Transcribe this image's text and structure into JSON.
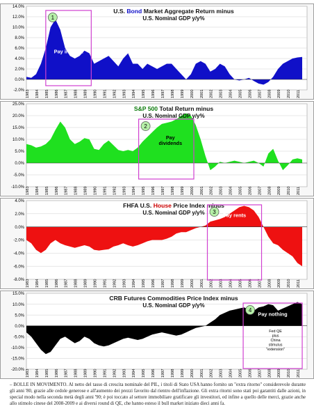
{
  "chart_data": [
    {
      "type": "area",
      "title_prefix": "U.S. ",
      "title_key": "Bond",
      "title_suffix": " Market Aggregate Return minus",
      "subtitle": "U.S. Nominal GDP y/y%",
      "fill_color": "#1010c8",
      "key_color": "#1010c8",
      "background": "#ffffff",
      "ylim": [
        -2,
        14
      ],
      "yticks": [
        "14.0%",
        "12.0%",
        "10.0%",
        "8.0%",
        "6.0%",
        "4.0%",
        "2.0%",
        "0.0%",
        "-2.0%"
      ],
      "ytick_values": [
        14,
        12,
        10,
        8,
        6,
        4,
        2,
        0,
        -2
      ],
      "xticks": [
        "1983",
        "1984",
        "1985",
        "1986",
        "1987",
        "1988",
        "1989",
        "1990",
        "1991",
        "1992",
        "1993",
        "1994",
        "1995",
        "1996",
        "1997",
        "1998",
        "1999",
        "2000",
        "2001",
        "2002",
        "2003",
        "2004",
        "2005",
        "2006",
        "2007",
        "2008",
        "2009",
        "2010",
        "2011"
      ],
      "x": [
        1983,
        1983.5,
        1984,
        1984.5,
        1985,
        1985.5,
        1986,
        1986.5,
        1987,
        1987.5,
        1988,
        1988.5,
        1989,
        1989.5,
        1990,
        1990.5,
        1991,
        1991.5,
        1992,
        1992.5,
        1993,
        1993.5,
        1994,
        1994.5,
        1995,
        1995.5,
        1996,
        1996.5,
        1997,
        1997.5,
        1998,
        1998.5,
        1999,
        1999.5,
        2000,
        2000.5,
        2001,
        2001.5,
        2002,
        2002.5,
        2003,
        2003.5,
        2004,
        2004.5,
        2005,
        2005.5,
        2006,
        2006.5,
        2007,
        2007.5,
        2008,
        2008.5,
        2009,
        2009.5,
        2010,
        2010.5,
        2011,
        2011.5
      ],
      "values": [
        0.5,
        0.3,
        1.0,
        3.0,
        6.0,
        10.0,
        11.5,
        9.5,
        6.0,
        4.5,
        4.0,
        4.5,
        5.5,
        5.0,
        3.0,
        3.5,
        4.0,
        4.5,
        3.5,
        2.5,
        4.0,
        5.0,
        3.0,
        3.0,
        2.0,
        3.0,
        2.5,
        2.0,
        2.5,
        3.0,
        3.0,
        2.0,
        1.0,
        0.0,
        1.0,
        3.0,
        3.5,
        3.0,
        1.5,
        2.0,
        3.0,
        2.5,
        1.0,
        0.0,
        -0.2,
        0.0,
        0.3,
        -0.3,
        -0.8,
        -1.0,
        -0.5,
        0.5,
        2.0,
        3.0,
        3.5,
        4.0,
        4.2,
        4.3
      ],
      "box_label": "Pay interest",
      "box_number": "1",
      "box_range": [
        1985,
        1989.7
      ]
    },
    {
      "type": "area",
      "title_prefix": "",
      "title_key": "S&P 500",
      "title_suffix": " Total Return minus",
      "subtitle": "U.S. Nominal GDP y/y%",
      "fill_color": "#1fe01f",
      "key_color": "#0a7a0a",
      "background": "#ffffff",
      "ylim": [
        -10,
        25
      ],
      "yticks": [
        "25.0%",
        "20.0%",
        "15.0%",
        "10.0%",
        "5.0%",
        "0.0%",
        "-5.0%",
        "-10.0%"
      ],
      "ytick_values": [
        25,
        20,
        15,
        10,
        5,
        0,
        -5,
        -10
      ],
      "xticks": [
        "1983",
        "1984",
        "1985",
        "1986",
        "1987",
        "1988",
        "1989",
        "1990",
        "1991",
        "1992",
        "1993",
        "1994",
        "1995",
        "1996",
        "1997",
        "1998",
        "1999",
        "2000",
        "2001",
        "2002",
        "2003",
        "2004",
        "2005",
        "2006",
        "2007",
        "2008",
        "2009",
        "2010",
        "2011"
      ],
      "x": [
        1983,
        1983.5,
        1984,
        1984.5,
        1985,
        1985.5,
        1986,
        1986.5,
        1987,
        1987.5,
        1988,
        1988.5,
        1989,
        1989.5,
        1990,
        1990.5,
        1991,
        1991.5,
        1992,
        1992.5,
        1993,
        1993.5,
        1994,
        1994.5,
        1995,
        1995.5,
        1996,
        1996.5,
        1997,
        1997.5,
        1998,
        1998.5,
        1999,
        1999.5,
        2000,
        2000.5,
        2001,
        2001.5,
        2002,
        2002.5,
        2003,
        2003.5,
        2004,
        2004.5,
        2005,
        2005.5,
        2006,
        2006.5,
        2007,
        2007.5,
        2008,
        2008.5,
        2009,
        2009.5,
        2010,
        2010.5,
        2011,
        2011.5
      ],
      "values": [
        8.0,
        7.5,
        6.5,
        7.0,
        8.0,
        10.0,
        14.0,
        17.5,
        15.0,
        10.0,
        8.0,
        9.0,
        10.5,
        10.0,
        6.0,
        5.5,
        8.0,
        9.5,
        7.5,
        5.5,
        5.0,
        5.5,
        5.0,
        6.5,
        9.0,
        11.0,
        13.0,
        15.0,
        16.5,
        17.0,
        17.5,
        18.5,
        20.0,
        21.0,
        20.0,
        16.0,
        10.0,
        3.0,
        -3.0,
        -1.5,
        0.5,
        0.0,
        0.5,
        1.0,
        0.5,
        0.0,
        0.5,
        1.0,
        0.0,
        -1.5,
        4.0,
        6.0,
        1.0,
        -3.0,
        -1.0,
        1.5,
        2.0,
        1.5
      ],
      "box_label": "Pay dividends",
      "box_number": "2",
      "box_range": [
        1994.6,
        2000.3
      ]
    },
    {
      "type": "area",
      "title_prefix": "FHFA U.S. ",
      "title_key": "House",
      "title_suffix": " Price Index minus",
      "subtitle": "U.S. Nominal GDP y/y%",
      "fill_color": "#ee1111",
      "key_color": "#cc0000",
      "background": "#ffffff",
      "ylim": [
        -8,
        4
      ],
      "yticks": [
        "4.0%",
        "2.0%",
        "0.0%",
        "-2.0%",
        "-4.0%",
        "-6.0%",
        "-8.0%"
      ],
      "ytick_values": [
        4,
        2,
        0,
        -2,
        -4,
        -6,
        -8
      ],
      "xticks": [
        "1983",
        "1984",
        "1985",
        "1986",
        "1987",
        "1988",
        "1989",
        "1990",
        "1991",
        "1992",
        "1993",
        "1994",
        "1995",
        "1996",
        "1997",
        "1998",
        "1999",
        "2000",
        "2001",
        "2002",
        "2003",
        "2004",
        "2005",
        "2006",
        "2007",
        "2008",
        "2009",
        "2010",
        "2011"
      ],
      "x": [
        1983,
        1983.5,
        1984,
        1984.5,
        1985,
        1985.5,
        1986,
        1986.5,
        1987,
        1987.5,
        1988,
        1988.5,
        1989,
        1989.5,
        1990,
        1990.5,
        1991,
        1991.5,
        1992,
        1992.5,
        1993,
        1993.5,
        1994,
        1994.5,
        1995,
        1995.5,
        1996,
        1996.5,
        1997,
        1997.5,
        1998,
        1998.5,
        1999,
        1999.5,
        2000,
        2000.5,
        2001,
        2001.5,
        2002,
        2002.5,
        2003,
        2003.5,
        2004,
        2004.5,
        2005,
        2005.5,
        2006,
        2006.5,
        2007,
        2007.5,
        2008,
        2008.5,
        2009,
        2009.5,
        2010,
        2010.5,
        2011,
        2011.5
      ],
      "values": [
        -2.0,
        -2.5,
        -3.5,
        -4.0,
        -3.5,
        -2.5,
        -2.0,
        -2.5,
        -2.8,
        -3.0,
        -3.2,
        -3.0,
        -2.8,
        -3.0,
        -3.5,
        -3.6,
        -3.5,
        -3.4,
        -3.0,
        -2.8,
        -2.5,
        -2.8,
        -3.0,
        -2.8,
        -2.5,
        -2.2,
        -2.0,
        -2.0,
        -2.0,
        -1.8,
        -1.5,
        -1.0,
        -0.8,
        -0.8,
        -0.5,
        -0.2,
        0.0,
        0.2,
        0.8,
        1.0,
        1.2,
        1.5,
        2.0,
        2.5,
        3.0,
        3.2,
        3.0,
        2.5,
        1.5,
        0.0,
        -1.5,
        -2.5,
        -2.8,
        -3.5,
        -4.0,
        -4.5,
        -5.5,
        -6.0
      ],
      "box_label": "Pay rents",
      "box_number": "3",
      "box_range": [
        2001.7,
        2007.3
      ]
    },
    {
      "type": "area",
      "title_prefix": "CRB Futures Commodities Price Index minus",
      "title_key": "",
      "title_suffix": "",
      "subtitle": "U.S. Nominal GDP y/y%",
      "fill_color": "#000000",
      "key_color": "#000000",
      "background": "#ffffff",
      "ylim": [
        -20,
        15
      ],
      "yticks": [
        "15.0%",
        "10.0%",
        "5.0%",
        "0.0%",
        "-5.0%",
        "-10.0%",
        "-15.0%",
        "-20.0%"
      ],
      "ytick_values": [
        15,
        10,
        5,
        0,
        -5,
        -10,
        -15,
        -20
      ],
      "xticks": [
        "1983",
        "1984",
        "1985",
        "1986",
        "1987",
        "1988",
        "1989",
        "1990",
        "1991",
        "1992",
        "1993",
        "1994",
        "1995",
        "1996",
        "1997",
        "1998",
        "1999",
        "2000",
        "2001",
        "2002",
        "2003",
        "2004",
        "2005",
        "2006",
        "2007",
        "2008",
        "2009",
        "2010",
        "2011"
      ],
      "x": [
        1983,
        1983.5,
        1984,
        1984.5,
        1985,
        1985.5,
        1986,
        1986.5,
        1987,
        1987.5,
        1988,
        1988.5,
        1989,
        1989.5,
        1990,
        1990.5,
        1991,
        1991.5,
        1992,
        1992.5,
        1993,
        1993.5,
        1994,
        1994.5,
        1995,
        1995.5,
        1996,
        1996.5,
        1997,
        1997.5,
        1998,
        1998.5,
        1999,
        1999.5,
        2000,
        2000.5,
        2001,
        2001.5,
        2002,
        2002.5,
        2003,
        2003.5,
        2004,
        2004.5,
        2005,
        2005.5,
        2006,
        2006.5,
        2007,
        2007.5,
        2008,
        2008.5,
        2009,
        2009.5,
        2010,
        2010.5,
        2011,
        2011.5
      ],
      "values": [
        -3.0,
        -5.0,
        -8.0,
        -11.0,
        -13.0,
        -12.0,
        -9.0,
        -6.0,
        -5.0,
        -6.5,
        -8.0,
        -7.0,
        -5.0,
        -6.0,
        -8.0,
        -9.0,
        -9.5,
        -9.0,
        -8.0,
        -7.0,
        -6.0,
        -5.5,
        -6.0,
        -6.5,
        -6.0,
        -5.0,
        -4.0,
        -3.5,
        -3.0,
        -3.5,
        -4.0,
        -4.5,
        -4.0,
        -3.0,
        -2.0,
        -1.0,
        -0.5,
        0.0,
        1.5,
        3.0,
        5.0,
        6.0,
        7.0,
        7.5,
        8.0,
        8.5,
        7.5,
        7.0,
        8.5,
        9.0,
        10.0,
        9.5,
        7.0,
        8.0,
        9.0,
        10.0,
        11.0,
        10.0
      ],
      "box_label": "Pay nothing",
      "box_number": "4",
      "box_range": [
        2005.4,
        2011.5
      ],
      "annotation": [
        "Fed QE",
        "plus",
        "China",
        "stimulus",
        "\"extension\""
      ]
    }
  ],
  "caption": "– BOLLE IN MOVIMENTO. Al netto del tasso di crescita nominale del PIL, i titoli di Stato USA hanno fornito un \"extra ritorno\" considerevole durante gli anni '80, grazie alle cedole generose e all'aumento dei prezzi favorito dal rientro dell'inflazione. Gli extra ritorni sono stati poi garantiti dalle azioni, in special modo nella seconda metà degli anni '90; è poi toccato al settore immobiliare gratificare gli investitori, ed infine a quello delle merci, grazie anche allo stimolo cinese del 2008-2009 e ai diversi round di QE, che hanno esteso il bull market iniziato dieci anni fa."
}
